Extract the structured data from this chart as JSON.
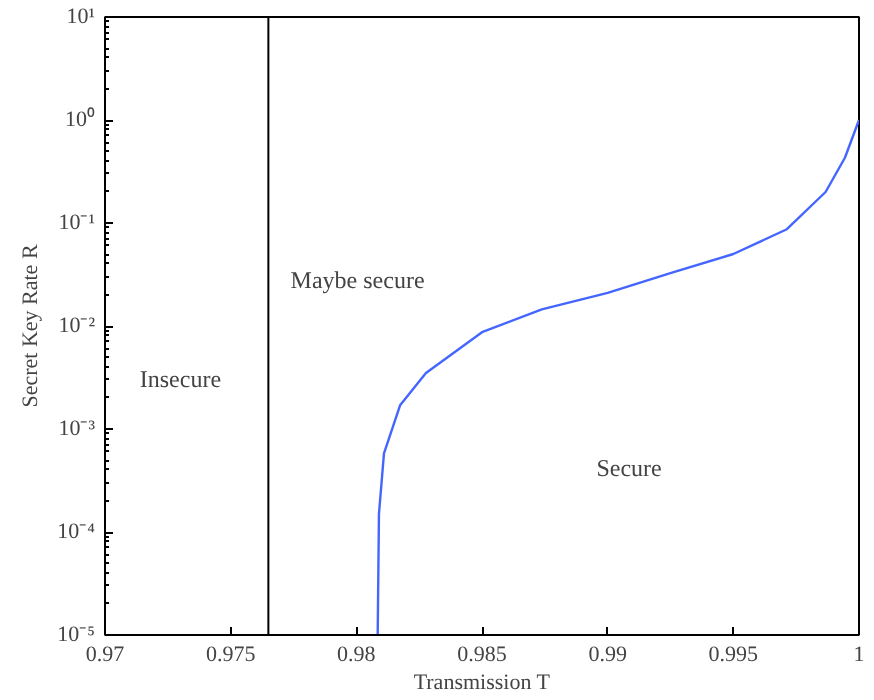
{
  "chart_data": {
    "type": "line",
    "xlabel": "Transmission T",
    "ylabel": "Secret Key Rate R",
    "log": "y",
    "xlim": [
      0.97,
      1
    ],
    "xticks": [
      0.97,
      0.975,
      0.98,
      0.985,
      0.99,
      0.995,
      1
    ],
    "ylim": [
      1e-05,
      10
    ],
    "yticks": [
      {
        "value": 1e-05,
        "label": "10⁻⁵"
      },
      {
        "value": 0.0001,
        "label": "10⁻⁴"
      },
      {
        "value": 0.001,
        "label": "10⁻³"
      },
      {
        "value": 0.01,
        "label": "10⁻²"
      },
      {
        "value": 0.1,
        "label": "10⁻¹"
      },
      {
        "value": 1,
        "label": "10⁰"
      },
      {
        "value": 10,
        "label": "10¹"
      }
    ],
    "grid": false,
    "series": [
      {
        "color": "#4466ff",
        "x": [
          0.98085,
          0.9809,
          0.9811,
          0.98174,
          0.98277,
          0.985,
          0.98738,
          0.99,
          0.99256,
          0.995,
          0.99713,
          0.99867,
          0.99944,
          1.0
        ],
        "values": [
          1e-05,
          0.00015,
          0.00058,
          0.0017,
          0.0035,
          0.0087,
          0.0145,
          0.021,
          0.033,
          0.05,
          0.087,
          0.2,
          0.43,
          1.0
        ]
      }
    ],
    "ref_lines": [
      {
        "axis": "x",
        "value": 0.9765,
        "color": "#000000"
      }
    ],
    "annotations": [
      "Insecure",
      "Maybe secure",
      "Secure"
    ]
  }
}
